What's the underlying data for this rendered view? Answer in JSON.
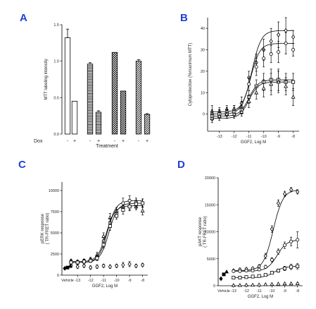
{
  "panels": {
    "A": {
      "label": "A"
    },
    "B": {
      "label": "B"
    },
    "C": {
      "label": "C"
    },
    "D": {
      "label": "D"
    }
  },
  "chart_data": [
    {
      "panel": "A",
      "type": "bar",
      "ylabel": "MTT labeling intensity",
      "xlabel": "Treatment",
      "row_label": "Dox",
      "dox_labels": [
        "-",
        "+",
        "-",
        "+",
        "-",
        "+",
        "-",
        "+"
      ],
      "ylim": [
        0,
        1.5
      ],
      "yticks": [
        0.0,
        0.5,
        1.0,
        1.5
      ],
      "yticklabels": [
        "0.0",
        "0.5",
        "1.0",
        "1.5"
      ],
      "values": [
        1.32,
        0.45,
        0.96,
        0.3,
        1.12,
        0.59,
        1.0,
        0.27
      ],
      "errors": [
        0.12,
        0.0,
        0.02,
        0.02,
        0.0,
        0.0,
        0.02,
        0.01
      ],
      "patterns": [
        "white",
        "white",
        "hlines",
        "hlines",
        "checker",
        "checker",
        "diag",
        "diag"
      ]
    },
    {
      "panel": "B",
      "type": "scatter",
      "ylabel": "Cytoprotection (%maximum MTT)",
      "xlabel": "GGF2, Log M",
      "xlim": [
        -13.8,
        -7.6
      ],
      "ylim": [
        -8,
        45
      ],
      "xticks": [
        -13,
        -12,
        -11,
        -10,
        -9,
        -8
      ],
      "xticklabels": [
        "-13",
        "-12",
        "-11",
        "-10",
        "-9",
        "-8"
      ],
      "yticks": [
        0,
        10,
        20,
        30,
        40
      ],
      "yticklabels": [
        "0",
        "10",
        "20",
        "30",
        "40"
      ],
      "x": [
        -13.5,
        -13,
        -12.5,
        -12,
        -11.5,
        -11,
        -10.5,
        -10,
        -9.5,
        -9,
        -8.5,
        -8
      ],
      "series": [
        {
          "marker": "diamond",
          "values": [
            1,
            1,
            2,
            2,
            5,
            17,
            24,
            30,
            34,
            37,
            39,
            36
          ],
          "errors": [
            3,
            2,
            2,
            2,
            3,
            3,
            4,
            5,
            6,
            6,
            6,
            3
          ]
        },
        {
          "marker": "circle",
          "values": [
            0,
            0,
            1,
            2,
            3,
            14,
            22,
            26,
            28,
            29,
            33,
            30
          ],
          "errors": [
            2,
            2,
            2,
            2,
            3,
            3,
            4,
            4,
            4,
            5,
            5,
            3
          ]
        },
        {
          "marker": "square",
          "values": [
            -1,
            0,
            0,
            1,
            2,
            8,
            13,
            15,
            16,
            16,
            15,
            15
          ],
          "errors": [
            2,
            2,
            2,
            2,
            2,
            3,
            3,
            4,
            5,
            5,
            4,
            4
          ]
        },
        {
          "marker": "triangle",
          "values": [
            -2,
            -1,
            0,
            0,
            1,
            6,
            10,
            12,
            14,
            15,
            13,
            8
          ],
          "errors": [
            2,
            2,
            2,
            2,
            2,
            3,
            3,
            4,
            5,
            5,
            4,
            4
          ]
        }
      ]
    },
    {
      "panel": "C",
      "type": "scatter",
      "ylabel": "pERK response",
      "ylabel2": "( TR-FRET ratio)",
      "xlabel": "GGF2, Log M",
      "xlim": [
        -14.2,
        -7.6
      ],
      "ylim": [
        0,
        11000
      ],
      "xticks": [
        -13,
        -12,
        -11,
        -10,
        -9,
        -8
      ],
      "xticklabels": [
        "-13",
        "-12",
        "-11",
        "-10",
        "-9",
        "-8"
      ],
      "vehicle_label": "Vehicle",
      "yticks": [
        0,
        2500,
        5000,
        7500,
        10000
      ],
      "yticklabels": [
        "0",
        "2500",
        "5000",
        "7500",
        "10000"
      ],
      "x": [
        -13.5,
        -13,
        -12.5,
        -12,
        -11.5,
        -11,
        -10.5,
        -10,
        -9.5,
        -9,
        -8.5,
        -8
      ],
      "vehicle_values": [
        800,
        900,
        1100
      ],
      "series": [
        {
          "marker": "triangle",
          "values": [
            1700,
            1600,
            1700,
            1900,
            2400,
            4600,
            6800,
            7600,
            8100,
            8200,
            8100,
            7600
          ],
          "errors": [
            200,
            200,
            200,
            200,
            300,
            400,
            500,
            400,
            500,
            500,
            400,
            500
          ]
        },
        {
          "marker": "circle",
          "values": [
            1600,
            1500,
            1700,
            1800,
            2100,
            4000,
            6200,
            7300,
            8500,
            8800,
            8600,
            8500
          ],
          "errors": [
            200,
            200,
            200,
            200,
            300,
            400,
            500,
            400,
            600,
            600,
            500,
            500
          ]
        },
        {
          "marker": "square",
          "values": [
            1500,
            1500,
            1600,
            1700,
            2000,
            3600,
            5800,
            7000,
            7700,
            8100,
            8400,
            8500
          ],
          "errors": [
            200,
            200,
            200,
            200,
            300,
            400,
            500,
            400,
            500,
            500,
            500,
            500
          ]
        },
        {
          "marker": "diamond",
          "values": [
            1100,
            1000,
            1100,
            900,
            1000,
            1100,
            1000,
            1100,
            1200,
            1300,
            1100,
            1200
          ],
          "errors": [
            200,
            200,
            200,
            200,
            200,
            200,
            200,
            200,
            300,
            300,
            200,
            200
          ]
        }
      ]
    },
    {
      "panel": "D",
      "type": "scatter",
      "ylabel": "pAKT response",
      "ylabel2": "( TR-FRET ratio)",
      "xlabel": "GGF2, Log M",
      "xlim": [
        -14.2,
        -7.6
      ],
      "ylim": [
        0,
        20000
      ],
      "xticks": [
        -13,
        -12,
        -11,
        -10,
        -9,
        -8
      ],
      "xticklabels": [
        "-13",
        "-12",
        "-11",
        "-10",
        "-9",
        "-8"
      ],
      "vehicle_label": "Vehicle",
      "yticks": [
        0,
        5000,
        10000,
        15000,
        20000
      ],
      "yticklabels": [
        "0",
        "5000",
        "10000",
        "15000",
        "20000"
      ],
      "x": [
        -13,
        -12.5,
        -12,
        -11.5,
        -11,
        -10.5,
        -10,
        -9.5,
        -9,
        -8.5,
        -8
      ],
      "vehicle_values": [
        1300,
        2100,
        2600
      ],
      "series": [
        {
          "marker": "diamond",
          "values": [
            2800,
            3000,
            3100,
            3200,
            3600,
            5500,
            10500,
            15300,
            17000,
            17800,
            17400
          ],
          "errors": [
            200,
            200,
            200,
            200,
            300,
            500,
            600,
            600,
            500,
            400,
            400
          ]
        },
        {
          "marker": "circle",
          "values": [
            2700,
            2700,
            2800,
            2800,
            3000,
            3500,
            4800,
            6300,
            7500,
            8200,
            8500
          ],
          "errors": [
            200,
            200,
            200,
            200,
            200,
            300,
            400,
            500,
            600,
            800,
            1500
          ]
        },
        {
          "marker": "square",
          "values": [
            1500,
            1500,
            1600,
            1700,
            1800,
            2000,
            2400,
            2800,
            3200,
            3500,
            3600
          ],
          "errors": [
            150,
            150,
            150,
            150,
            200,
            200,
            250,
            300,
            400,
            500,
            500
          ]
        },
        {
          "marker": "triangle",
          "values": [
            100,
            100,
            150,
            150,
            200,
            250,
            300,
            350,
            400,
            400,
            450
          ],
          "errors": [
            50,
            50,
            50,
            50,
            50,
            50,
            50,
            60,
            60,
            60,
            60
          ]
        }
      ]
    }
  ]
}
